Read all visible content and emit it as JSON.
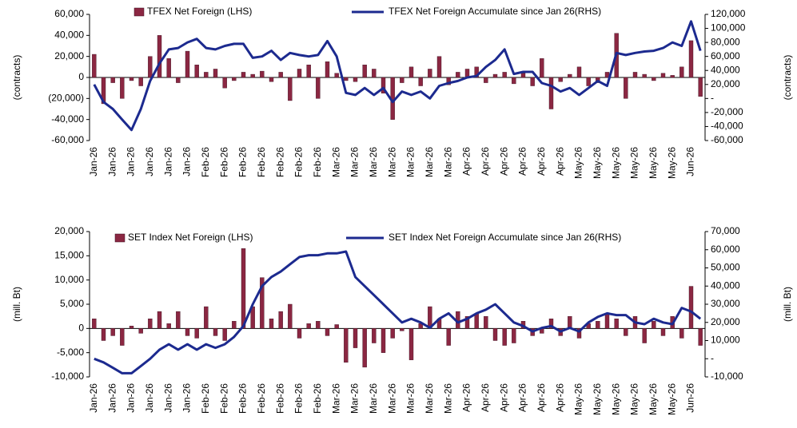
{
  "chart_data": [
    {
      "type": "combo",
      "y_label": "(contracts)",
      "y2_label": "(contracts)",
      "categories": [
        "Jan-26",
        null,
        "Jan-26",
        null,
        "Jan-26",
        null,
        "Jan-26",
        null,
        "Jan-26",
        null,
        "Jan-26",
        null,
        "Feb-26",
        null,
        "Feb-26",
        null,
        "Feb-26",
        null,
        "Feb-26",
        null,
        "Feb-26",
        null,
        "Feb-26",
        null,
        "Feb-26",
        null,
        "Mar-26",
        null,
        "Mar-26",
        null,
        "Mar-26",
        null,
        "Mar-26",
        null,
        "Mar-26",
        null,
        "Mar-26",
        null,
        "Mar-26",
        null,
        "Apr-26",
        null,
        "Apr-26",
        null,
        "Apr-26",
        null,
        "Apr-26",
        null,
        "Apr-26",
        null,
        "Apr-26",
        null,
        "May-26",
        null,
        "May-26",
        null,
        "May-26",
        null,
        "May-26",
        null,
        "May-26",
        null,
        "May-26",
        null,
        "Jun-26",
        null
      ],
      "series": [
        {
          "name": "TFEX Net Foreign (LHS)",
          "type": "bar",
          "color": "#8b2742",
          "values": [
            22000,
            -25000,
            -5000,
            -20000,
            -3000,
            -8000,
            20000,
            40000,
            18000,
            -5000,
            25000,
            12000,
            5000,
            8000,
            -10000,
            -3000,
            5000,
            3000,
            6000,
            -4000,
            5000,
            -22000,
            8000,
            12000,
            -20000,
            15000,
            4000,
            -3000,
            -4000,
            12000,
            8000,
            -15000,
            -40000,
            -5000,
            10000,
            -8000,
            8000,
            20000,
            -7000,
            5000,
            8000,
            10000,
            -5000,
            3000,
            5000,
            -6000,
            4000,
            -8000,
            18000,
            -30000,
            -4000,
            3000,
            10000,
            -8000,
            -5000,
            5000,
            42000,
            -20000,
            5000,
            3000,
            -3000,
            4000,
            2000,
            10000,
            35000,
            -18000
          ]
        },
        {
          "name": "TFEX Net Foreign Accumulate since Jan 26(RHS)",
          "type": "line",
          "axis": "y2",
          "color": "#1c2a8f",
          "values": [
            20000,
            -5000,
            -15000,
            -30000,
            -45000,
            -15000,
            25000,
            50000,
            70000,
            72000,
            80000,
            85000,
            72000,
            70000,
            75000,
            78000,
            78000,
            58000,
            60000,
            68000,
            55000,
            65000,
            62000,
            60000,
            62000,
            82000,
            60000,
            8000,
            5000,
            15000,
            5000,
            15000,
            -5000,
            10000,
            5000,
            10000,
            0,
            18000,
            22000,
            25000,
            30000,
            32000,
            45000,
            55000,
            70000,
            35000,
            38000,
            38000,
            22000,
            18000,
            10000,
            15000,
            5000,
            15000,
            25000,
            18000,
            65000,
            62000,
            65000,
            67000,
            68000,
            72000,
            80000,
            75000,
            110000,
            68000
          ]
        }
      ],
      "ylim": [
        -60000,
        60000
      ],
      "yticks": [
        {
          "value": -60000,
          "label": "-60,000"
        },
        {
          "value": -40000,
          "label": "-40,000"
        },
        {
          "value": -20000,
          "label": "(20,000)"
        },
        0,
        {
          "value": 20000,
          "label": "20,000"
        },
        {
          "value": 40000,
          "label": "40,000"
        },
        {
          "value": 60000,
          "label": "60,000"
        }
      ],
      "y2lim": [
        -60000,
        120000
      ],
      "y2ticks": [
        {
          "value": -60000,
          "label": "-60,000"
        },
        {
          "value": -40000,
          "label": "-40,000"
        },
        {
          "value": -20000,
          "label": "-20,000"
        },
        {
          "value": 0,
          "label": "-"
        },
        {
          "value": 20000,
          "label": "20,000"
        },
        {
          "value": 40000,
          "label": "40,000"
        },
        {
          "value": 60000,
          "label": "60,000"
        },
        {
          "value": 80000,
          "label": "80,000"
        },
        {
          "value": 100000,
          "label": "100,000"
        },
        {
          "value": 120000,
          "label": "120,000"
        }
      ],
      "grid": false
    },
    {
      "type": "combo",
      "y_label": "(mill. Bt)",
      "y2_label": "(mill. Bt)",
      "categories": [
        "Jan-26",
        null,
        "Jan-26",
        null,
        "Jan-26",
        null,
        "Jan-26",
        null,
        "Jan-26",
        null,
        "Jan-26",
        null,
        "Feb-26",
        null,
        "Feb-26",
        null,
        "Feb-26",
        null,
        "Feb-26",
        null,
        "Feb-26",
        null,
        "Feb-26",
        null,
        "Feb-26",
        null,
        "Mar-26",
        null,
        "Mar-26",
        null,
        "Mar-26",
        null,
        "Mar-26",
        null,
        "Mar-26",
        null,
        "Mar-26",
        null,
        "Mar-26",
        null,
        "Apr-26",
        null,
        "Apr-26",
        null,
        "Apr-26",
        null,
        "Apr-26",
        null,
        "Apr-26",
        null,
        "Apr-26",
        null,
        "May-26",
        null,
        "May-26",
        null,
        "May-26",
        null,
        "May-26",
        null,
        "May-26",
        null,
        "May-26",
        null,
        "Jun-26",
        null
      ],
      "series": [
        {
          "name": "SET Index Net Foreign (LHS)",
          "type": "bar",
          "color": "#8b2742",
          "values": [
            2000,
            -2500,
            -1500,
            -3500,
            500,
            -1000,
            2000,
            3500,
            1000,
            3500,
            -1500,
            -2000,
            4500,
            -1500,
            -2500,
            1500,
            16500,
            4500,
            10500,
            2000,
            3500,
            5000,
            -2000,
            1000,
            1500,
            -1500,
            800,
            -7000,
            -4000,
            -8000,
            -3000,
            -5000,
            -2000,
            -500,
            -6500,
            1000,
            4500,
            2000,
            -3500,
            3500,
            2500,
            3000,
            2500,
            -2500,
            -3500,
            -3000,
            1500,
            -1500,
            -1000,
            2000,
            -1500,
            2500,
            -2000,
            1000,
            1500,
            3000,
            2000,
            -1500,
            2500,
            -3000,
            1500,
            -1500,
            2500,
            -2000,
            8700,
            -3500
          ]
        },
        {
          "name": "SET Index Net Foreign Accumulate since Jan 26(RHS)",
          "type": "line",
          "axis": "y2",
          "color": "#1c2a8f",
          "values": [
            0,
            -2000,
            -5000,
            -8000,
            -8000,
            -4000,
            0,
            5000,
            8000,
            5000,
            8000,
            5000,
            8000,
            6000,
            8000,
            12000,
            18000,
            30000,
            40000,
            45000,
            48000,
            52000,
            56000,
            57000,
            57000,
            58000,
            58000,
            59000,
            45000,
            40000,
            35000,
            30000,
            25000,
            20000,
            22000,
            20000,
            17000,
            22000,
            25000,
            20000,
            22000,
            25000,
            27000,
            30000,
            25000,
            20000,
            18000,
            15000,
            17000,
            18000,
            15000,
            17000,
            15000,
            20000,
            23000,
            25000,
            24000,
            24000,
            20000,
            19000,
            22000,
            20000,
            19000,
            28000,
            26000,
            22000
          ]
        }
      ],
      "ylim": [
        -10000,
        20000
      ],
      "yticks": [
        {
          "value": -10000,
          "label": "-10,000"
        },
        {
          "value": -5000,
          "label": "-5,000"
        },
        0,
        {
          "value": 5000,
          "label": "5,000"
        },
        {
          "value": 10000,
          "label": "10,000"
        },
        {
          "value": 15000,
          "label": "15,000"
        },
        {
          "value": 20000,
          "label": "20,000"
        }
      ],
      "y2lim": [
        -10000,
        70000
      ],
      "y2ticks": [
        {
          "value": -10000,
          "label": "-10,000"
        },
        {
          "value": 0,
          "label": "-"
        },
        {
          "value": 10000,
          "label": "10,000"
        },
        {
          "value": 20000,
          "label": "20,000"
        },
        {
          "value": 30000,
          "label": "30,000"
        },
        {
          "value": 40000,
          "label": "40,000"
        },
        {
          "value": 50000,
          "label": "50,000"
        },
        {
          "value": 60000,
          "label": "60,000"
        },
        {
          "value": 70000,
          "label": "70,000"
        }
      ],
      "grid": false
    }
  ]
}
